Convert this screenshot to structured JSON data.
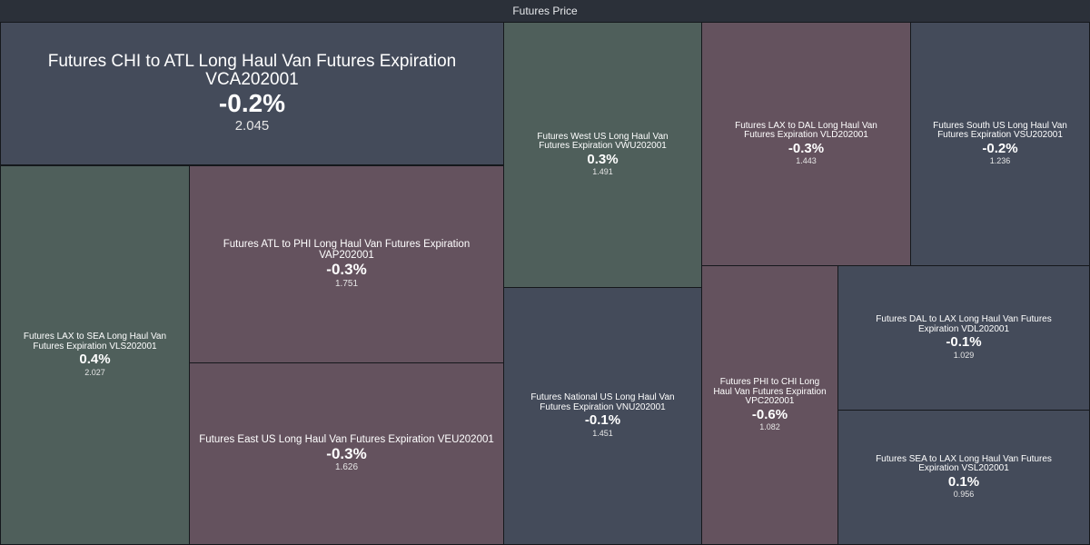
{
  "header": {
    "title": "Futures Price"
  },
  "colors": {
    "negative_small": "#444b5a",
    "positive": "#4f5f5b",
    "negative": "#64525e",
    "header": "#2b3039"
  },
  "chart_data": {
    "type": "treemap",
    "title": "Futures Price",
    "items": [
      {
        "id": "vca",
        "name": "Futures CHI to ATL Long Haul Van Futures Expiration VCA202001",
        "change": "-0.2%",
        "value": "2.045",
        "price": 2.045,
        "color": "#444b5a",
        "size": "s-xl"
      },
      {
        "id": "vls",
        "name": "Futures LAX to SEA Long Haul Van Futures Expiration VLS202001",
        "change": "0.4%",
        "value": "2.027",
        "price": 2.027,
        "color": "#4f5f5b",
        "size": "s-m"
      },
      {
        "id": "vap",
        "name": "Futures ATL to PHI Long Haul Van Futures Expiration VAP202001",
        "change": "-0.3%",
        "value": "1.751",
        "price": 1.751,
        "color": "#64525e",
        "size": "s-l"
      },
      {
        "id": "veu",
        "name": "Futures East US Long Haul Van Futures Expiration VEU202001",
        "change": "-0.3%",
        "value": "1.626",
        "price": 1.626,
        "color": "#64525e",
        "size": "s-l"
      },
      {
        "id": "vwu",
        "name": "Futures West US Long Haul Van Futures Expiration VWU202001",
        "change": "0.3%",
        "value": "1.491",
        "price": 1.491,
        "color": "#4f5f5b",
        "size": "s-m"
      },
      {
        "id": "vnu",
        "name": "Futures National US Long Haul Van Futures Expiration VNU202001",
        "change": "-0.1%",
        "value": "1.451",
        "price": 1.451,
        "color": "#444b5a",
        "size": "s-m"
      },
      {
        "id": "vld",
        "name": "Futures LAX to DAL Long Haul Van Futures Expiration VLD202001",
        "change": "-0.3%",
        "value": "1.443",
        "price": 1.443,
        "color": "#64525e",
        "size": "s-m"
      },
      {
        "id": "vsu",
        "name": "Futures South US Long Haul Van Futures Expiration VSU202001",
        "change": "-0.2%",
        "value": "1.236",
        "price": 1.236,
        "color": "#444b5a",
        "size": "s-m"
      },
      {
        "id": "vpc",
        "name": "Futures PHI to CHI Long Haul Van Futures Expiration VPC202001",
        "change": "-0.6%",
        "value": "1.082",
        "price": 1.082,
        "color": "#64525e",
        "size": "s-m"
      },
      {
        "id": "vdl",
        "name": "Futures DAL to LAX Long Haul Van Futures Expiration VDL202001",
        "change": "-0.1%",
        "value": "1.029",
        "price": 1.029,
        "color": "#444b5a",
        "size": "s-m"
      },
      {
        "id": "vsl",
        "name": "Futures SEA to LAX Long Haul Van Futures Expiration VSL202001",
        "change": "0.1%",
        "value": "0.956",
        "price": 0.956,
        "color": "#444b5a",
        "size": "s-m"
      }
    ]
  }
}
